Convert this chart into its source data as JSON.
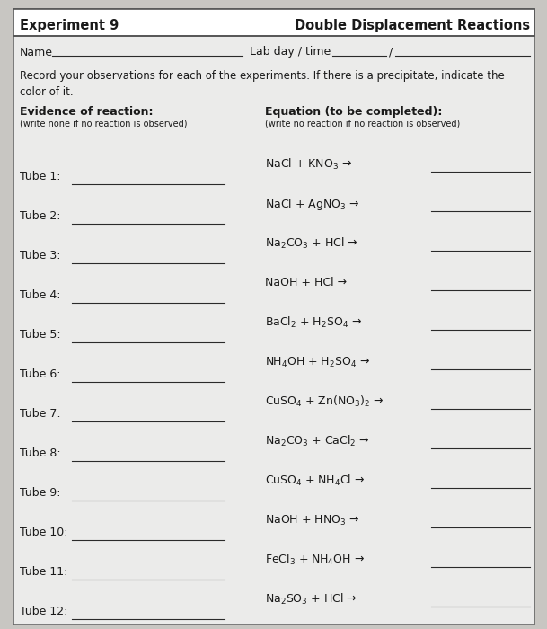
{
  "title_left": "Experiment 9",
  "title_right": "Double Displacement Reactions",
  "name_label": "Name",
  "lab_label": "Lab day / time",
  "description": "Record your observations for each of the experiments. If there is a precipitate, indicate the\ncolor of it.",
  "col1_header": "Evidence of reaction:",
  "col1_subheader": "(write none if no reaction is observed)",
  "col2_header": "Equation (to be completed):",
  "col2_subheader": "(write no reaction if no reaction is observed)",
  "tubes": [
    "Tube 1:",
    "Tube 2:",
    "Tube 3:",
    "Tube 4:",
    "Tube 5:",
    "Tube 6:",
    "Tube 7:",
    "Tube 8:",
    "Tube 9:",
    "Tube 10:",
    "Tube 11:",
    "Tube 12:"
  ],
  "equations": [
    "NaCl + KNO$_3$ →",
    "NaCl + AgNO$_3$ →",
    "Na$_2$CO$_3$ + HCl →",
    "NaOH + HCl →",
    "BaCl$_2$ + H$_2$SO$_4$ →",
    "NH$_4$OH + H$_2$SO$_4$ →",
    "CuSO$_4$ + Zn(NO$_3$)$_2$ →",
    "Na$_2$CO$_3$ + CaCl$_2$ →",
    "CuSO$_4$ + NH$_4$Cl →",
    "NaOH + HNO$_3$ →",
    "FeCl$_3$ + NH$_4$OH →",
    "Na$_2$SO$_3$ + HCl →"
  ],
  "bg_color": "#c8c6c2",
  "paper_color": "#ebebea",
  "text_color": "#1a1a1a",
  "line_color": "#2a2a2a"
}
